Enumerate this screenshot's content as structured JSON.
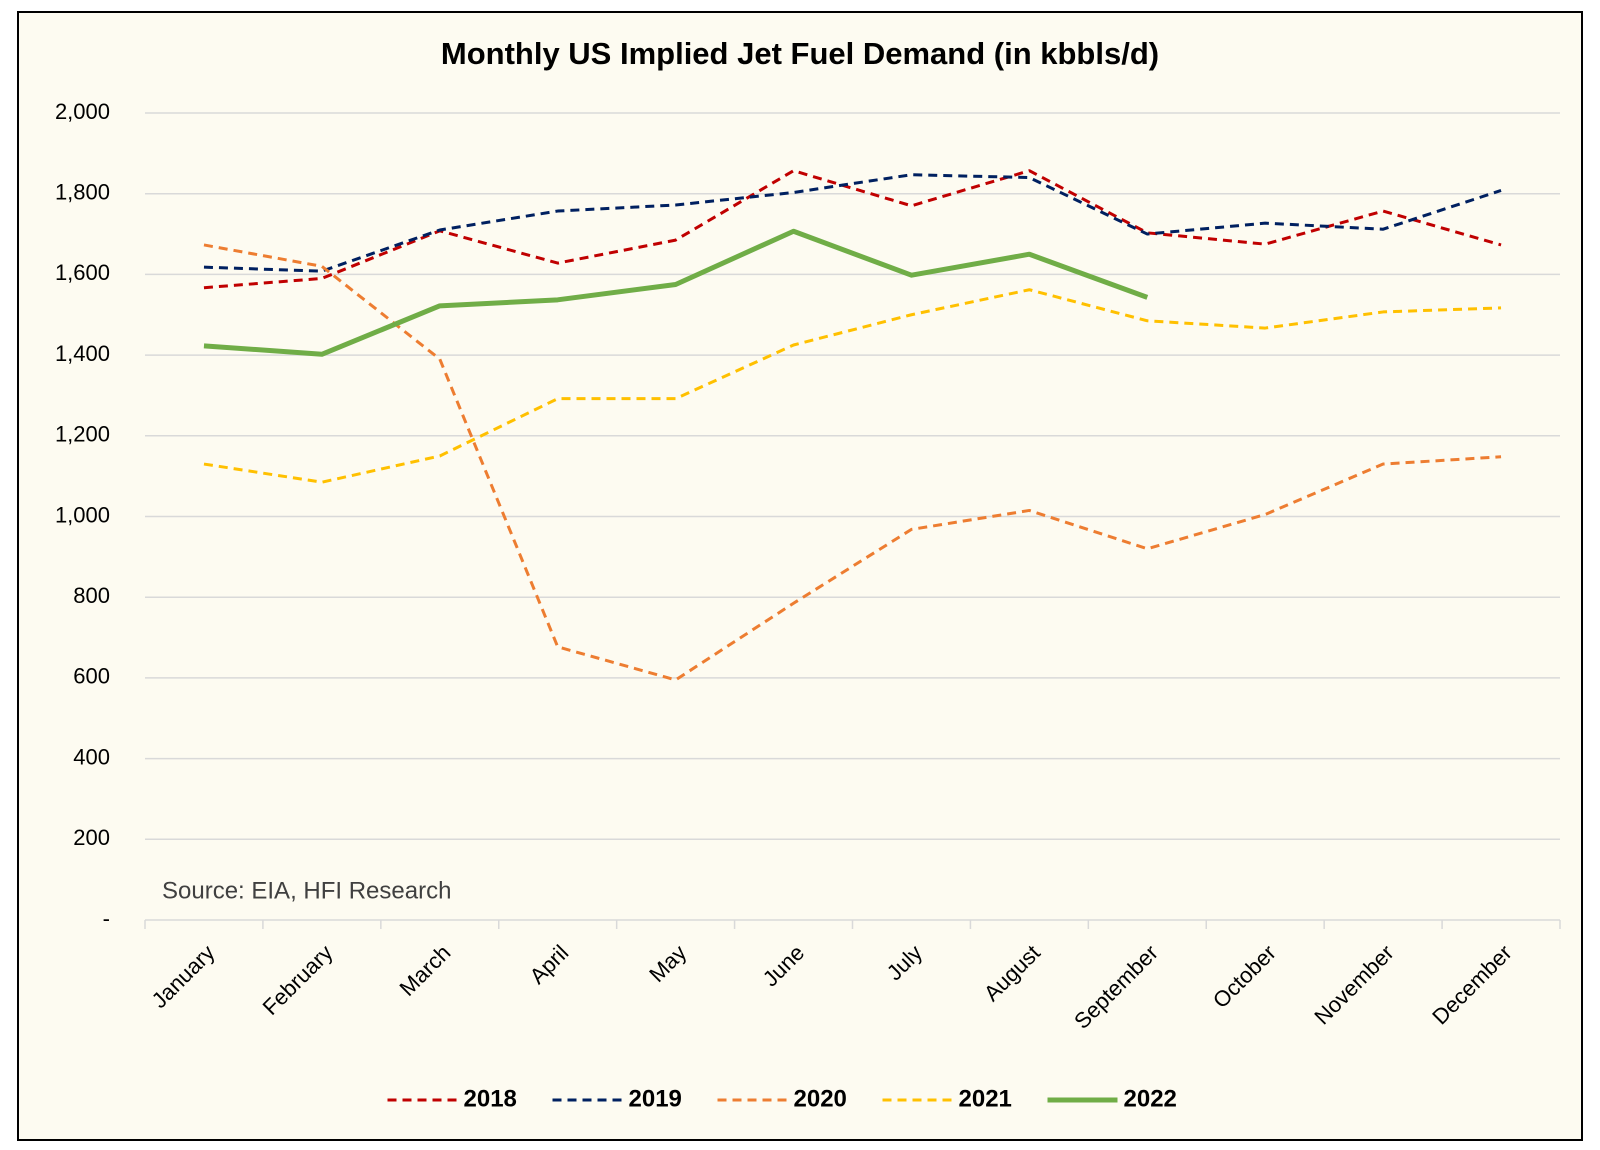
{
  "chart_data": {
    "type": "line",
    "title": "Monthly US Implied Jet Fuel Demand (in kbbls/d)",
    "annotation": "Source: EIA, HFI Research",
    "categories": [
      "January",
      "February",
      "March",
      "April",
      "May",
      "June",
      "July",
      "August",
      "September",
      "October",
      "November",
      "December"
    ],
    "series": [
      {
        "name": "2018",
        "color": "#c00000",
        "dashed": true,
        "values": [
          1567,
          1590,
          1708,
          1628,
          1685,
          1857,
          1770,
          1857,
          1703,
          1675,
          1757,
          1673
        ]
      },
      {
        "name": "2019",
        "color": "#002060",
        "dashed": true,
        "values": [
          1618,
          1608,
          1710,
          1757,
          1772,
          1803,
          1847,
          1840,
          1700,
          1727,
          1712,
          1808
        ]
      },
      {
        "name": "2020",
        "color": "#ed7d31",
        "dashed": true,
        "values": [
          1673,
          1620,
          1390,
          677,
          595,
          785,
          968,
          1015,
          920,
          1005,
          1130,
          1148
        ]
      },
      {
        "name": "2021",
        "color": "#ffc000",
        "dashed": true,
        "values": [
          1130,
          1085,
          1150,
          1292,
          1292,
          1425,
          1500,
          1562,
          1485,
          1467,
          1507,
          1517
        ]
      },
      {
        "name": "2022",
        "color": "#70ad47",
        "dashed": false,
        "values": [
          1423,
          1402,
          1522,
          1537,
          1575,
          1707,
          1598,
          1650,
          1543,
          null,
          null,
          null
        ]
      }
    ],
    "ylim": [
      0,
      2000
    ],
    "yticks": [
      {
        "value": 0,
        "label": "-"
      },
      200,
      400,
      600,
      800,
      {
        "value": 1000,
        "label": "1,000"
      },
      {
        "value": 1200,
        "label": "1,200"
      },
      {
        "value": 1400,
        "label": "1,400"
      },
      {
        "value": 1600,
        "label": "1,600"
      },
      {
        "value": 1800,
        "label": "1,800"
      },
      {
        "value": 2000,
        "label": "2,000"
      }
    ],
    "grid": true,
    "legend": "bottom"
  }
}
